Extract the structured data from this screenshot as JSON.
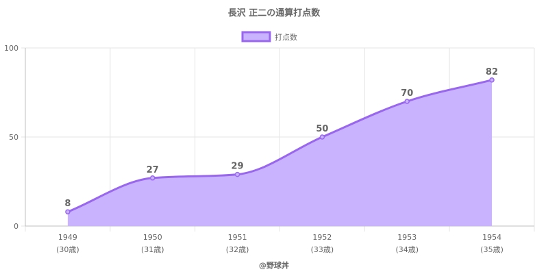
{
  "chart_data": {
    "type": "area",
    "title": "長沢 正二の通算打点数",
    "legend": {
      "position": "top",
      "entries": [
        "打点数"
      ]
    },
    "categories": [
      "1949",
      "1950",
      "1951",
      "1952",
      "1953",
      "1954"
    ],
    "category_sublabels": [
      "(30歳)",
      "(31歳)",
      "(32歳)",
      "(33歳)",
      "(34歳)",
      "(35歳)"
    ],
    "series": [
      {
        "name": "打点数",
        "values": [
          8,
          27,
          29,
          50,
          70,
          82
        ]
      }
    ],
    "ylim": [
      0,
      100
    ],
    "yticks": [
      0,
      50,
      100
    ],
    "grid": true,
    "colors": {
      "line": "#9966ee",
      "fill": "#c9b3ff",
      "grid": "#e6e6e6",
      "axis": "#bfbfbf"
    }
  },
  "footer": {
    "credit": "@野球丼"
  }
}
